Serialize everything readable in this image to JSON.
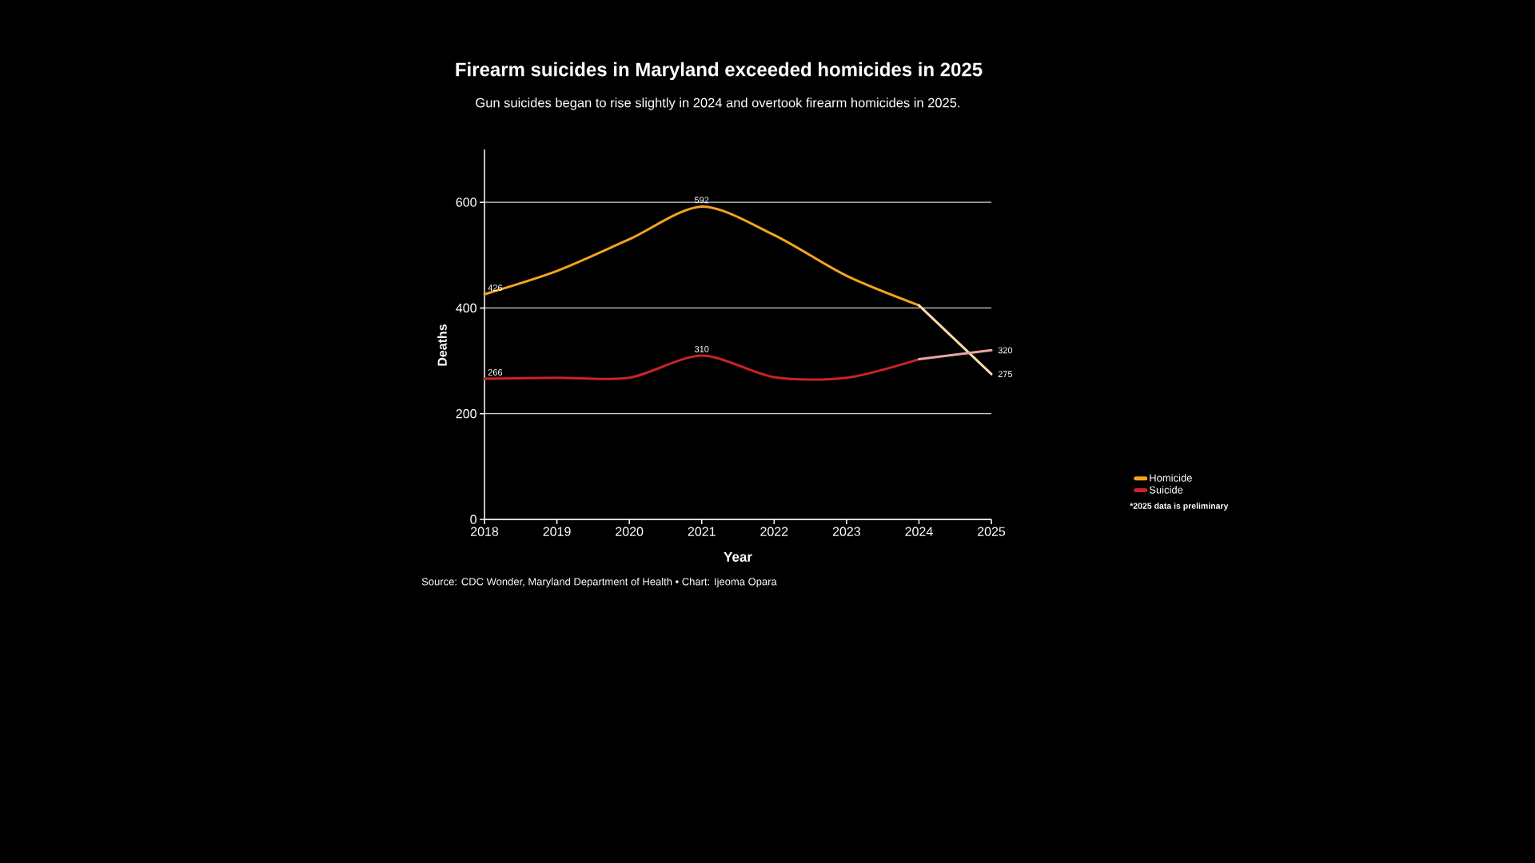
{
  "chart_data": {
    "type": "line",
    "title": "Firearm suicides in Maryland exceeded homicides in 2025",
    "subtitle": "Gun suicides began to rise slightly in 2024 and overtook firearm homicides in 2025.",
    "xlabel": "Year",
    "ylabel": "Deaths",
    "x": [
      2018,
      2019,
      2020,
      2021,
      2022,
      2023,
      2024,
      2025
    ],
    "series": [
      {
        "name": "Homicide",
        "color": "#f5a31e",
        "values": [
          426,
          470,
          530,
          592,
          538,
          461,
          405,
          null
        ],
        "value_labels": [
          "426",
          null,
          null,
          "592",
          null,
          null,
          null,
          null
        ]
      },
      {
        "color": "#fddca6",
        "values": [
          null,
          null,
          null,
          null,
          null,
          null,
          405,
          275
        ],
        "value_labels": [
          null,
          null,
          null,
          null,
          null,
          null,
          null,
          "275"
        ]
      },
      {
        "name": "Suicide",
        "color": "#cc2229",
        "values": [
          266,
          268,
          268,
          310,
          269,
          268,
          303,
          null
        ],
        "value_labels": [
          "266",
          null,
          null,
          "310",
          null,
          null,
          null,
          null
        ]
      },
      {
        "color": "#e8a6a8",
        "values": [
          null,
          null,
          null,
          null,
          null,
          null,
          303,
          320
        ],
        "value_labels": [
          null,
          null,
          null,
          null,
          null,
          null,
          null,
          "320"
        ]
      }
    ],
    "xlim": [
      2018,
      2025
    ],
    "xticks": [
      2018,
      2019,
      2020,
      2021,
      2022,
      2023,
      2024,
      2025
    ],
    "ylim": [
      0,
      700
    ],
    "yticks": [
      0,
      200,
      400,
      600
    ],
    "grid": "y",
    "legend": "right",
    "annotations": [
      "*2025 data is preliminary",
      "Source: CDC Wonder, Maryland Department of Health • Chart: Ijeoma Opara"
    ]
  }
}
